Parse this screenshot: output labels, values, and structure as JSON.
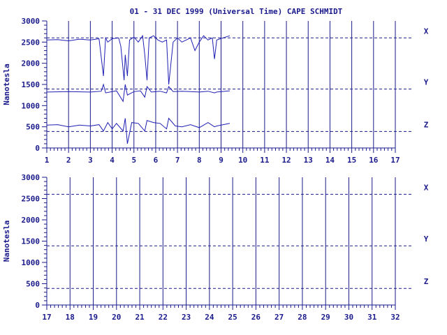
{
  "title": "01 - 31 DEC 1999 (Universal Time) CAPE SCHMIDT",
  "colors": {
    "ink": "#1a1a8c",
    "trace": "#1f1fb4",
    "background": "#ffffff"
  },
  "chart_data": [
    {
      "type": "line",
      "ylabel": "Nanotesla",
      "ylim": [
        0,
        3000
      ],
      "y_ticks": [
        "0",
        "500",
        "1000",
        "1500",
        "2000",
        "2500",
        "3000"
      ],
      "xlim": [
        1,
        17
      ],
      "x_ticks": [
        "1",
        "2",
        "3",
        "4",
        "5",
        "6",
        "7",
        "8",
        "9",
        "10",
        "11",
        "12",
        "13",
        "14",
        "15",
        "16",
        "17"
      ],
      "baselines": [
        {
          "name": "X",
          "value": 2600
        },
        {
          "name": "Y",
          "value": 1390
        },
        {
          "name": "Z",
          "value": 390
        }
      ],
      "series": [
        {
          "name": "X",
          "x": [
            1,
            1.5,
            2,
            2.5,
            3,
            3.4,
            3.6,
            3.7,
            3.8,
            4.0,
            4.3,
            4.4,
            4.55,
            4.6,
            4.7,
            4.8,
            5.0,
            5.2,
            5.4,
            5.5,
            5.6,
            5.7,
            5.9,
            6.1,
            6.3,
            6.5,
            6.6,
            6.8,
            7.0,
            7.2,
            7.4,
            7.6,
            7.8,
            8.0,
            8.2,
            8.4,
            8.6,
            8.7,
            8.8,
            9.4
          ],
          "y": [
            2550,
            2560,
            2530,
            2570,
            2550,
            2580,
            1700,
            2600,
            2500,
            2580,
            2600,
            2400,
            1600,
            2200,
            1700,
            2550,
            2620,
            2500,
            2650,
            2200,
            1600,
            2600,
            2650,
            2550,
            2500,
            2550,
            1500,
            2500,
            2600,
            2500,
            2550,
            2600,
            2300,
            2500,
            2650,
            2550,
            2600,
            2100,
            2550,
            2650
          ]
        },
        {
          "name": "Y",
          "x": [
            1,
            2,
            3,
            3.5,
            3.6,
            3.7,
            4.0,
            4.2,
            4.5,
            4.6,
            4.7,
            5.0,
            5.3,
            5.5,
            5.6,
            5.8,
            6.2,
            6.5,
            6.6,
            6.8,
            7.2,
            7.6,
            8.0,
            8.4,
            8.7,
            8.8,
            9.4
          ],
          "y": [
            1320,
            1330,
            1320,
            1340,
            1500,
            1300,
            1330,
            1350,
            1100,
            1500,
            1250,
            1330,
            1350,
            1200,
            1450,
            1320,
            1340,
            1300,
            1450,
            1330,
            1340,
            1330,
            1320,
            1340,
            1300,
            1320,
            1350
          ]
        },
        {
          "name": "Z",
          "x": [
            1,
            1.5,
            2,
            2.5,
            3,
            3.4,
            3.6,
            3.8,
            4.0,
            4.2,
            4.5,
            4.6,
            4.7,
            4.9,
            5.2,
            5.5,
            5.6,
            5.9,
            6.2,
            6.5,
            6.6,
            6.9,
            7.2,
            7.6,
            8.0,
            8.4,
            8.7,
            8.8,
            9.4
          ],
          "y": [
            540,
            550,
            500,
            540,
            520,
            550,
            400,
            600,
            450,
            580,
            400,
            700,
            100,
            600,
            580,
            400,
            650,
            600,
            580,
            450,
            700,
            520,
            500,
            550,
            480,
            600,
            500,
            520,
            580
          ]
        }
      ]
    },
    {
      "type": "line",
      "ylabel": "Nanotesla",
      "ylim": [
        0,
        3000
      ],
      "y_ticks": [
        "0",
        "500",
        "1000",
        "1500",
        "2000",
        "2500",
        "3000"
      ],
      "xlim": [
        17,
        32
      ],
      "x_ticks": [
        "17",
        "18",
        "19",
        "20",
        "21",
        "22",
        "23",
        "24",
        "25",
        "26",
        "27",
        "28",
        "29",
        "30",
        "31",
        "32"
      ],
      "baselines": [
        {
          "name": "X",
          "value": 2600
        },
        {
          "name": "Y",
          "value": 1390
        },
        {
          "name": "Z",
          "value": 390
        }
      ],
      "series": []
    }
  ]
}
